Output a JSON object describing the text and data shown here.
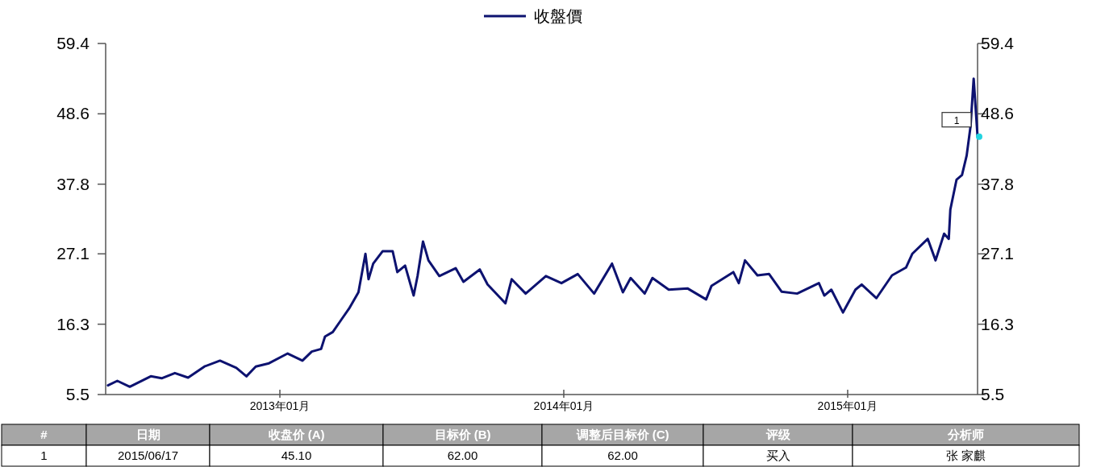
{
  "chart_data": {
    "type": "line",
    "series": [
      {
        "name": "收盤價",
        "color": "#0d1270",
        "x": [
          "2012-05-25",
          "2012-06-06",
          "2012-06-22",
          "2012-07-19",
          "2012-08-02",
          "2012-08-19",
          "2012-09-05",
          "2012-09-26",
          "2012-10-16",
          "2012-11-06",
          "2012-11-19",
          "2012-12-01",
          "2012-12-18",
          "2013-01-11",
          "2013-01-30",
          "2013-02-11",
          "2013-02-23",
          "2013-02-28",
          "2013-03-10",
          "2013-03-21",
          "2013-03-31",
          "2013-04-12",
          "2013-04-21",
          "2013-04-25",
          "2013-05-01",
          "2013-05-13",
          "2013-05-26",
          "2013-06-01",
          "2013-06-11",
          "2013-06-22",
          "2013-06-27",
          "2013-07-04",
          "2013-07-11",
          "2013-07-25",
          "2013-08-15",
          "2013-08-25",
          "2013-09-15",
          "2013-09-25",
          "2013-10-18",
          "2013-10-26",
          "2013-11-13",
          "2013-12-09",
          "2013-12-29",
          "2014-01-19",
          "2014-02-09",
          "2014-03-04",
          "2014-03-18",
          "2014-03-28",
          "2014-04-15",
          "2014-04-25",
          "2014-05-16",
          "2014-06-09",
          "2014-07-03",
          "2014-07-10",
          "2014-08-07",
          "2014-08-14",
          "2014-08-22",
          "2014-09-07",
          "2014-09-22",
          "2014-10-08",
          "2014-10-28",
          "2014-11-25",
          "2014-12-02",
          "2014-12-11",
          "2014-12-26",
          "2015-01-11",
          "2015-01-19",
          "2015-02-07",
          "2015-02-27",
          "2015-03-17",
          "2015-03-25",
          "2015-04-14",
          "2015-04-24",
          "2015-05-05",
          "2015-05-11",
          "2015-05-13",
          "2015-05-21",
          "2015-05-28",
          "2015-06-03",
          "2015-06-08",
          "2015-06-12",
          "2015-06-17"
        ],
        "values": [
          6.9,
          7.6,
          6.7,
          8.3,
          8.0,
          8.8,
          8.1,
          9.8,
          10.7,
          9.6,
          8.3,
          9.8,
          10.3,
          11.8,
          10.7,
          12.1,
          12.5,
          14.4,
          15.1,
          17.0,
          18.7,
          21.2,
          27.1,
          23.2,
          25.6,
          27.5,
          27.5,
          24.3,
          25.3,
          20.7,
          23.7,
          29.0,
          26.1,
          23.7,
          24.9,
          22.8,
          24.7,
          22.4,
          19.5,
          23.2,
          21.0,
          23.7,
          22.6,
          24.0,
          21.0,
          25.6,
          21.2,
          23.4,
          21.0,
          23.4,
          21.6,
          21.8,
          20.1,
          22.2,
          24.3,
          22.6,
          26.1,
          23.8,
          24.0,
          21.3,
          21.0,
          22.6,
          20.7,
          21.6,
          18.1,
          21.6,
          22.4,
          20.3,
          23.8,
          25.0,
          27.1,
          29.4,
          26.1,
          30.2,
          29.4,
          33.9,
          38.5,
          39.2,
          42.2,
          46.7,
          54.0,
          45.1
        ]
      }
    ],
    "xlim": [
      "2012-05-22",
      "2015-06-17"
    ],
    "xticks": [
      {
        "value": "2013-01-01",
        "label": "2013年01月"
      },
      {
        "value": "2014-01-01",
        "label": "2014年01月"
      },
      {
        "value": "2015-01-01",
        "label": "2015年01月"
      }
    ],
    "ylim": [
      5.5,
      59.4
    ],
    "yticks": [
      5.5,
      16.3,
      27.1,
      37.8,
      48.6,
      59.4
    ],
    "y2lim": [
      5.5,
      59.4
    ],
    "y2ticks": [
      5.5,
      16.3,
      27.1,
      37.8,
      48.6,
      59.4
    ],
    "legend": "top",
    "grid": false,
    "annotations": [
      {
        "text": "1",
        "x": "2015-06-17",
        "y": 45.1
      },
      "#",
      "日期",
      "收盘价 (A)",
      "目标价 (B)",
      "调整后目标价 (C)",
      "评级",
      "分析师",
      "1",
      "2015/06/17",
      "45.10",
      "62.00",
      "62.00",
      "买入",
      "张 家麒"
    ]
  }
}
